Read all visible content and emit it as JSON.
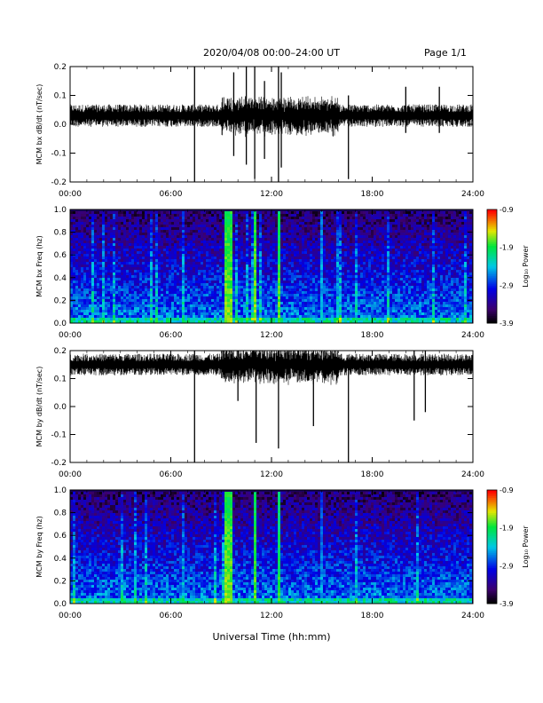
{
  "title": "2020/04/08  00:00–24:00 UT",
  "page_label": "Page 1/1",
  "xlabel_main": "Universal Time (hh:mm)",
  "x_ticks": [
    "00:00",
    "06:00",
    "12:00",
    "18:00",
    "24:00"
  ],
  "colorbar": {
    "ticks": [
      "-0.9",
      "-1.9",
      "-2.9",
      "-3.9"
    ],
    "label": "Log₁₀ Power",
    "range": [
      -3.9,
      -0.9
    ]
  },
  "chart_data": [
    {
      "type": "line",
      "ylabel": "MCM bx dB/dt (nT/sec)",
      "ylim": [
        -0.2,
        0.2
      ],
      "y_ticks": [
        "0.2",
        "0.1",
        "0.0",
        "-0.1",
        "-0.2"
      ],
      "xlim_hours": [
        0,
        24
      ],
      "baseline": 0.03,
      "noise_amplitude": 0.03,
      "series_color": "#000000",
      "spikes": [
        {
          "x": "07:25",
          "min": -0.2,
          "max": 0.2
        },
        {
          "x": "09:45",
          "min": -0.11,
          "max": 0.18
        },
        {
          "x": "10:30",
          "min": -0.14,
          "max": 0.2
        },
        {
          "x": "11:00",
          "min": -0.19,
          "max": 0.2
        },
        {
          "x": "11:35",
          "min": -0.12,
          "max": 0.15
        },
        {
          "x": "12:25",
          "min": -0.2,
          "max": 0.2
        },
        {
          "x": "12:35",
          "min": -0.15,
          "max": 0.18
        },
        {
          "x": "16:35",
          "min": -0.19,
          "max": 0.1
        },
        {
          "x": "20:00",
          "min": -0.03,
          "max": 0.13
        },
        {
          "x": "22:00",
          "min": -0.03,
          "max": 0.13
        }
      ]
    },
    {
      "type": "heatmap",
      "ylabel": "MCM bx Freq (hz)",
      "ylim": [
        0.0,
        1.0
      ],
      "y_ticks": [
        "1.0",
        "0.8",
        "0.6",
        "0.4",
        "0.2",
        "0.0"
      ],
      "xlim_hours": [
        0,
        24
      ],
      "value_range": [
        -3.9,
        -0.9
      ],
      "bright_bands": [
        {
          "x": "09:30",
          "width_min": 25,
          "level": -1.6
        },
        {
          "x": "11:00",
          "width_min": 8,
          "level": -1.6
        },
        {
          "x": "11:35",
          "width_min": 6,
          "level": -2.0
        },
        {
          "x": "12:25",
          "width_min": 8,
          "level": -1.7
        },
        {
          "x": "15:00",
          "width_min": 5,
          "level": -2.4
        },
        {
          "x": "16:30",
          "width_min": 5,
          "level": -2.4
        }
      ]
    },
    {
      "type": "line",
      "ylabel": "MCM by dB/dt (nT/sec)",
      "ylim": [
        -0.2,
        0.2
      ],
      "y_ticks": [
        "0.2",
        "0.1",
        "0.0",
        "-0.1",
        "-0.2"
      ],
      "xlim_hours": [
        0,
        24
      ],
      "baseline": 0.15,
      "noise_amplitude": 0.03,
      "series_color": "#000000",
      "spikes": [
        {
          "x": "07:25",
          "min": -0.2,
          "max": 0.2
        },
        {
          "x": "10:00",
          "min": 0.02,
          "max": 0.2
        },
        {
          "x": "11:05",
          "min": -0.13,
          "max": 0.2
        },
        {
          "x": "12:25",
          "min": -0.15,
          "max": 0.2
        },
        {
          "x": "14:30",
          "min": -0.07,
          "max": 0.2
        },
        {
          "x": "16:35",
          "min": -0.2,
          "max": 0.15
        },
        {
          "x": "20:30",
          "min": -0.05,
          "max": 0.2
        },
        {
          "x": "21:10",
          "min": -0.02,
          "max": 0.2
        }
      ]
    },
    {
      "type": "heatmap",
      "ylabel": "MCM by Freq (hz)",
      "ylim": [
        0.0,
        1.0
      ],
      "y_ticks": [
        "1.0",
        "0.8",
        "0.6",
        "0.4",
        "0.2",
        "0.0"
      ],
      "xlim_hours": [
        0,
        24
      ],
      "value_range": [
        -3.9,
        -0.9
      ],
      "bright_bands": [
        {
          "x": "09:30",
          "width_min": 25,
          "level": -1.6
        },
        {
          "x": "11:00",
          "width_min": 8,
          "level": -1.7
        },
        {
          "x": "11:35",
          "width_min": 6,
          "level": -2.0
        },
        {
          "x": "12:25",
          "width_min": 8,
          "level": -1.8
        },
        {
          "x": "15:00",
          "width_min": 5,
          "level": -2.5
        },
        {
          "x": "16:30",
          "width_min": 5,
          "level": -2.5
        }
      ]
    }
  ]
}
